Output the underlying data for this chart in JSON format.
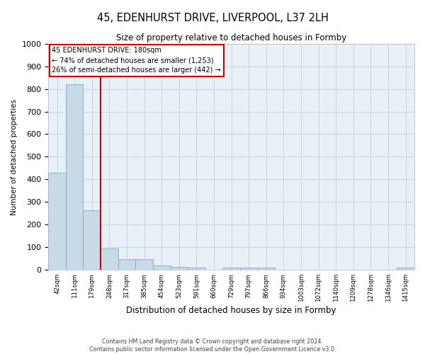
{
  "title_line1": "45, EDENHURST DRIVE, LIVERPOOL, L37 2LH",
  "title_line2": "Size of property relative to detached houses in Formby",
  "xlabel": "Distribution of detached houses by size in Formby",
  "ylabel": "Number of detached properties",
  "footer_line1": "Contains HM Land Registry data © Crown copyright and database right 2024.",
  "footer_line2": "Contains public sector information licensed under the Open Government Licence v3.0.",
  "bin_labels": [
    "42sqm",
    "111sqm",
    "179sqm",
    "248sqm",
    "317sqm",
    "385sqm",
    "454sqm",
    "523sqm",
    "591sqm",
    "660sqm",
    "729sqm",
    "797sqm",
    "866sqm",
    "934sqm",
    "1003sqm",
    "1072sqm",
    "1140sqm",
    "1209sqm",
    "1278sqm",
    "1346sqm",
    "1415sqm"
  ],
  "bar_values": [
    430,
    820,
    265,
    93,
    47,
    47,
    18,
    13,
    9,
    0,
    9,
    9,
    9,
    0,
    0,
    0,
    0,
    0,
    0,
    0,
    9
  ],
  "bar_color": "#c8d9e8",
  "bar_edge_color": "#7aaac8",
  "red_line_x": 2.5,
  "annotation_text": "45 EDENHURST DRIVE: 180sqm\n← 74% of detached houses are smaller (1,253)\n26% of semi-detached houses are larger (442) →",
  "annotation_box_color": "#ffffff",
  "annotation_box_edge_color": "#cc0000",
  "ylim": [
    0,
    1000
  ],
  "yticks": [
    0,
    100,
    200,
    300,
    400,
    500,
    600,
    700,
    800,
    900,
    1000
  ],
  "grid_color": "#c8d4de",
  "background_color": "#e8f0f8"
}
